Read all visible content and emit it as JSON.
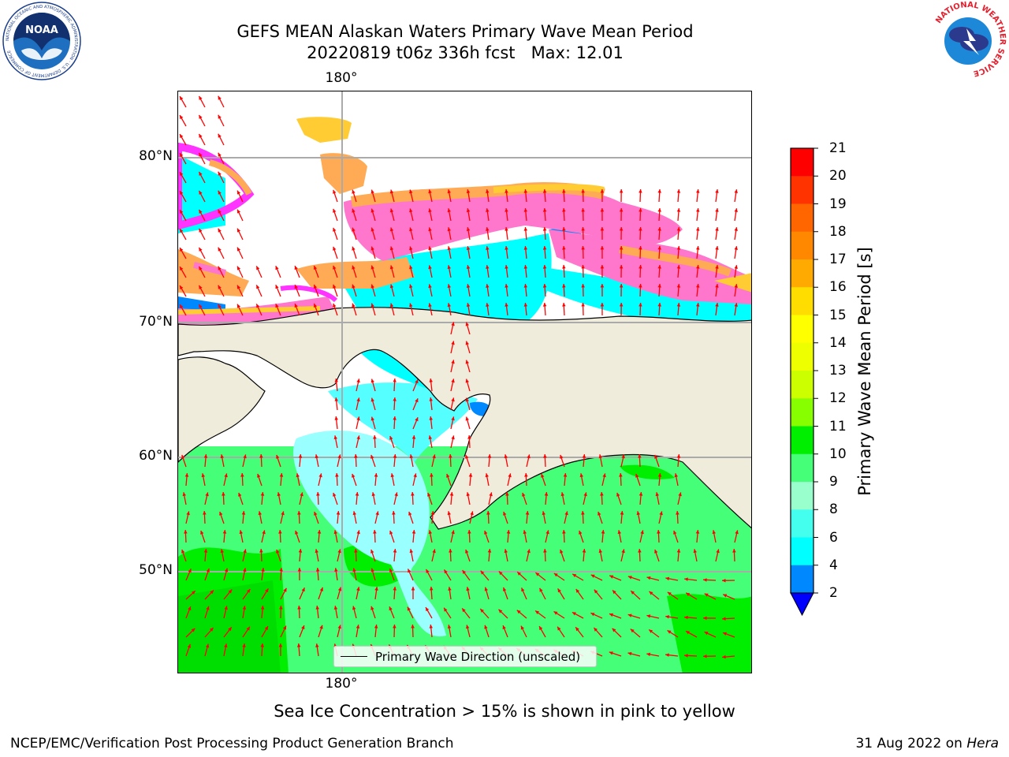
{
  "title_line1": "GEFS MEAN Alaskan Waters Primary Wave Mean Period",
  "title_line2": "20220819 t06z 336h fcst   Max: 12.01",
  "map": {
    "lon_labels": {
      "top": "180°",
      "bottom": "180°"
    },
    "lat_labels": [
      "80°N",
      "70°N",
      "60°N",
      "50°N"
    ],
    "legend_label": "Primary Wave Direction (unscaled)",
    "arrow_color": "#ff0000",
    "land_color": "#efecdc",
    "ice_colors": [
      "#ff33ff",
      "#ff77cc",
      "#ffaa55",
      "#ffcc33"
    ]
  },
  "colorbar": {
    "label": "Primary Wave Mean Period [s]",
    "ticks": [
      "21",
      "20",
      "19",
      "18",
      "17",
      "16",
      "15",
      "14",
      "13",
      "12",
      "11",
      "10",
      "9",
      "8",
      "6",
      "4",
      "2"
    ],
    "colors": [
      "#ff0000",
      "#ff3300",
      "#ff6600",
      "#ff8800",
      "#ffaa00",
      "#ffdd00",
      "#ffff00",
      "#eeff00",
      "#ccff00",
      "#88ff00",
      "#00ee00",
      "#44ff77",
      "#99ffcc",
      "#44ffee",
      "#00ffff",
      "#0088ff"
    ],
    "extend_color": "#0000ff"
  },
  "logos": {
    "noaa": {
      "text": "NOAA",
      "ring_text": "NATIONAL OCEANIC AND ATMOSPHERIC ADMINISTRATION · U.S. DEPARTMENT OF COMMERCE"
    },
    "nws": {
      "ring_text": "NATIONAL WEATHER SERVICE"
    }
  },
  "subtitle": "Sea Ice Concentration > 15% is shown in pink to yellow",
  "footer": {
    "left": "NCEP/EMC/Verification Post Processing Product Generation Branch",
    "right_date": "31 Aug 2022 on ",
    "right_machine": "Hera"
  }
}
